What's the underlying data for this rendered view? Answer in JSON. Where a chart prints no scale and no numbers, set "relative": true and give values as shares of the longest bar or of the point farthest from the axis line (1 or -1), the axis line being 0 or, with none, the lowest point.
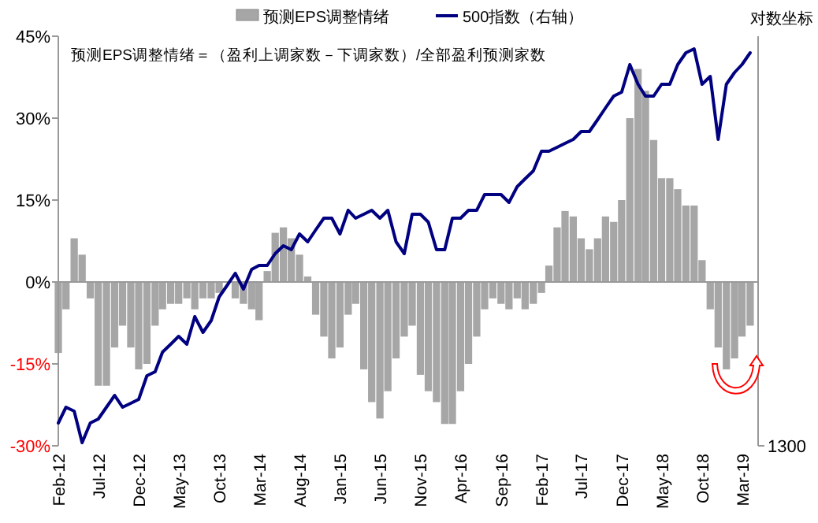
{
  "chart_data": [
    {
      "type": "bar",
      "annotations": [
        "预测EPS调整情绪＝（盈利上调家数－下调家数）/全部盈利预测家数"
      ],
      "legend": "top",
      "x": [
        "2012-02",
        "2012-03",
        "2012-04",
        "2012-05",
        "2012-06",
        "2012-07",
        "2012-08",
        "2012-09",
        "2012-10",
        "2012-11",
        "2012-12",
        "2013-01",
        "2013-02",
        "2013-03",
        "2013-04",
        "2013-05",
        "2013-06",
        "2013-07",
        "2013-08",
        "2013-09",
        "2013-10",
        "2013-11",
        "2013-12",
        "2014-01",
        "2014-02",
        "2014-03",
        "2014-04",
        "2014-05",
        "2014-06",
        "2014-07",
        "2014-08",
        "2014-09",
        "2014-10",
        "2014-11",
        "2014-12",
        "2015-01",
        "2015-02",
        "2015-03",
        "2015-04",
        "2015-05",
        "2015-06",
        "2015-07",
        "2015-08",
        "2015-09",
        "2015-10",
        "2015-11",
        "2015-12",
        "2016-01",
        "2016-02",
        "2016-03",
        "2016-04",
        "2016-05",
        "2016-06",
        "2016-07",
        "2016-08",
        "2016-09",
        "2016-10",
        "2016-11",
        "2016-12",
        "2017-01",
        "2017-02",
        "2017-03",
        "2017-04",
        "2017-05",
        "2017-06",
        "2017-07",
        "2017-08",
        "2017-09",
        "2017-10",
        "2017-11",
        "2017-12",
        "2018-01",
        "2018-02",
        "2018-03",
        "2018-04",
        "2018-05",
        "2018-06",
        "2018-07",
        "2018-08",
        "2018-09",
        "2018-10",
        "2018-11",
        "2018-12",
        "2019-01",
        "2019-02",
        "2019-03",
        "2019-04"
      ],
      "series": [
        {
          "name": "预测EPS调整情绪",
          "color": "#a6a6a6",
          "values": [
            -13,
            -5,
            8,
            5,
            -3,
            -19,
            -19,
            -12,
            -8,
            -12,
            -16,
            -15,
            -8,
            -5,
            -4,
            -4,
            -3,
            -5,
            -3,
            -3,
            -2,
            null,
            -3,
            -4,
            -5,
            -7,
            2,
            9,
            10,
            8,
            5,
            1,
            -6,
            -10,
            -14,
            -12,
            -6,
            -4,
            -16,
            -22,
            -25,
            -20,
            -14,
            -10,
            -8,
            -17,
            -20,
            -22,
            -26,
            -26,
            -20,
            -15,
            -10,
            -5,
            -3,
            -4,
            -5,
            -3,
            -5,
            -4,
            -2,
            3,
            10,
            13,
            12,
            8,
            6,
            8,
            12,
            11,
            15,
            30,
            39,
            35,
            26,
            19,
            19,
            17,
            14,
            14,
            4,
            -5,
            -12,
            -16,
            -14,
            -10,
            -8
          ]
        }
      ],
      "xlim": [
        "2012-02",
        "2019-05"
      ],
      "xticks": [
        {
          "value": "2012-02",
          "label": "Feb-12"
        },
        {
          "value": "2012-07",
          "label": "Jul-12"
        },
        {
          "value": "2012-12",
          "label": "Dec-12"
        },
        {
          "value": "2013-05",
          "label": "May-13"
        },
        {
          "value": "2013-10",
          "label": "Oct-13"
        },
        {
          "value": "2014-03",
          "label": "Mar-14"
        },
        {
          "value": "2014-08",
          "label": "Aug-14"
        },
        {
          "value": "2015-01",
          "label": "Jan-15"
        },
        {
          "value": "2015-06",
          "label": "Jun-15"
        },
        {
          "value": "2015-11",
          "label": "Nov-15"
        },
        {
          "value": "2016-04",
          "label": "Apr-16"
        },
        {
          "value": "2016-09",
          "label": "Sep-16"
        },
        {
          "value": "2017-02",
          "label": "Feb-17"
        },
        {
          "value": "2017-07",
          "label": "Jul-17"
        },
        {
          "value": "2017-12",
          "label": "Dec-17"
        },
        {
          "value": "2018-05",
          "label": "May-18"
        },
        {
          "value": "2018-10",
          "label": "Oct-18"
        },
        {
          "value": "2019-03",
          "label": "Mar-19"
        }
      ],
      "ylim": [
        -30,
        45
      ],
      "yticks": [
        {
          "value": -30,
          "label": "-30%"
        },
        {
          "value": -15,
          "label": "-15%"
        },
        {
          "value": 0,
          "label": "0%"
        },
        {
          "value": 15,
          "label": "15%"
        },
        {
          "value": 30,
          "label": "30%"
        },
        {
          "value": 45,
          "label": "45%"
        }
      ]
    },
    {
      "type": "line",
      "relative": true,
      "legend": "top",
      "annotations": [
        "对数坐标",
        "1300"
      ],
      "x": [
        "2012-02",
        "2012-03",
        "2012-04",
        "2012-05",
        "2012-06",
        "2012-07",
        "2012-08",
        "2012-09",
        "2012-10",
        "2012-11",
        "2012-12",
        "2013-01",
        "2013-02",
        "2013-03",
        "2013-04",
        "2013-05",
        "2013-06",
        "2013-07",
        "2013-08",
        "2013-09",
        "2013-10",
        "2013-11",
        "2013-12",
        "2014-01",
        "2014-02",
        "2014-03",
        "2014-04",
        "2014-05",
        "2014-06",
        "2014-07",
        "2014-08",
        "2014-09",
        "2014-10",
        "2014-11",
        "2014-12",
        "2015-01",
        "2015-02",
        "2015-03",
        "2015-04",
        "2015-05",
        "2015-06",
        "2015-07",
        "2015-08",
        "2015-09",
        "2015-10",
        "2015-11",
        "2015-12",
        "2016-01",
        "2016-02",
        "2016-03",
        "2016-04",
        "2016-05",
        "2016-06",
        "2016-07",
        "2016-08",
        "2016-09",
        "2016-10",
        "2016-11",
        "2016-12",
        "2017-01",
        "2017-02",
        "2017-03",
        "2017-04",
        "2017-05",
        "2017-06",
        "2017-07",
        "2017-08",
        "2017-09",
        "2017-10",
        "2017-11",
        "2017-12",
        "2018-01",
        "2018-02",
        "2018-03",
        "2018-04",
        "2018-05",
        "2018-06",
        "2018-07",
        "2018-08",
        "2018-09",
        "2018-10",
        "2018-11",
        "2018-12",
        "2019-01",
        "2019-02",
        "2019-03",
        "2019-04"
      ],
      "xlim": [
        "2012-02",
        "2019-05"
      ],
      "series": [
        {
          "name": "500指数（右轴）",
          "color": "#000080",
          "values": [
            0.05,
            0.09,
            0.08,
            0,
            0.05,
            0.06,
            0.09,
            0.12,
            0.09,
            0.1,
            0.11,
            0.17,
            0.18,
            0.23,
            0.25,
            0.27,
            0.25,
            0.32,
            0.28,
            0.31,
            0.37,
            0.4,
            0.43,
            0.39,
            0.44,
            0.45,
            0.45,
            0.48,
            0.5,
            0.49,
            0.53,
            0.51,
            0.54,
            0.57,
            0.57,
            0.53,
            0.59,
            0.57,
            0.58,
            0.59,
            0.57,
            0.59,
            0.51,
            0.48,
            0.58,
            0.58,
            0.56,
            0.49,
            0.49,
            0.57,
            0.57,
            0.59,
            0.59,
            0.63,
            0.63,
            0.63,
            0.61,
            0.65,
            0.67,
            0.69,
            0.74,
            0.74,
            0.75,
            0.76,
            0.77,
            0.79,
            0.79,
            0.82,
            0.85,
            0.88,
            0.89,
            0.96,
            0.91,
            0.88,
            0.88,
            0.91,
            0.91,
            0.96,
            0.99,
            1,
            0.91,
            0.93,
            0.77,
            0.91,
            0.94,
            0.96,
            0.99
          ]
        }
      ]
    }
  ]
}
